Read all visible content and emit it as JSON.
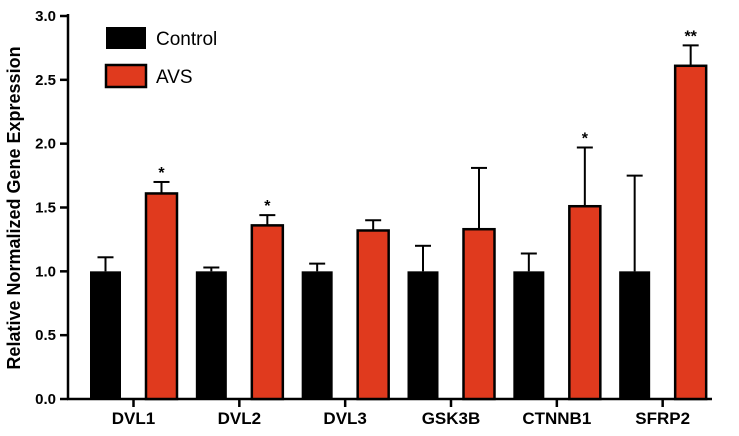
{
  "chart_data": {
    "type": "bar",
    "ylabel": "Relative Normalized Gene Expression",
    "xlabel": "",
    "ylim": [
      0,
      3.0
    ],
    "yticks": [
      "0.0",
      "0.5",
      "1.0",
      "1.5",
      "2.0",
      "2.5",
      "3.0"
    ],
    "categories": [
      "DVL1",
      "DVL2",
      "DVL3",
      "GSK3B",
      "CTNNB1",
      "SFRP2"
    ],
    "series": [
      {
        "name": "Control",
        "color": "#000000",
        "values": [
          1.0,
          1.0,
          1.0,
          1.0,
          1.0,
          1.0
        ],
        "error": [
          0.11,
          0.03,
          0.06,
          0.2,
          0.14,
          0.75
        ]
      },
      {
        "name": "AVS",
        "color": "#e03a1e",
        "values": [
          1.61,
          1.36,
          1.32,
          1.33,
          1.51,
          2.61
        ],
        "error": [
          0.09,
          0.08,
          0.08,
          0.48,
          0.46,
          0.16
        ]
      }
    ],
    "significance": [
      "*",
      "*",
      "",
      "",
      "*",
      "**"
    ],
    "legend_position": "top-left",
    "grid": false
  }
}
